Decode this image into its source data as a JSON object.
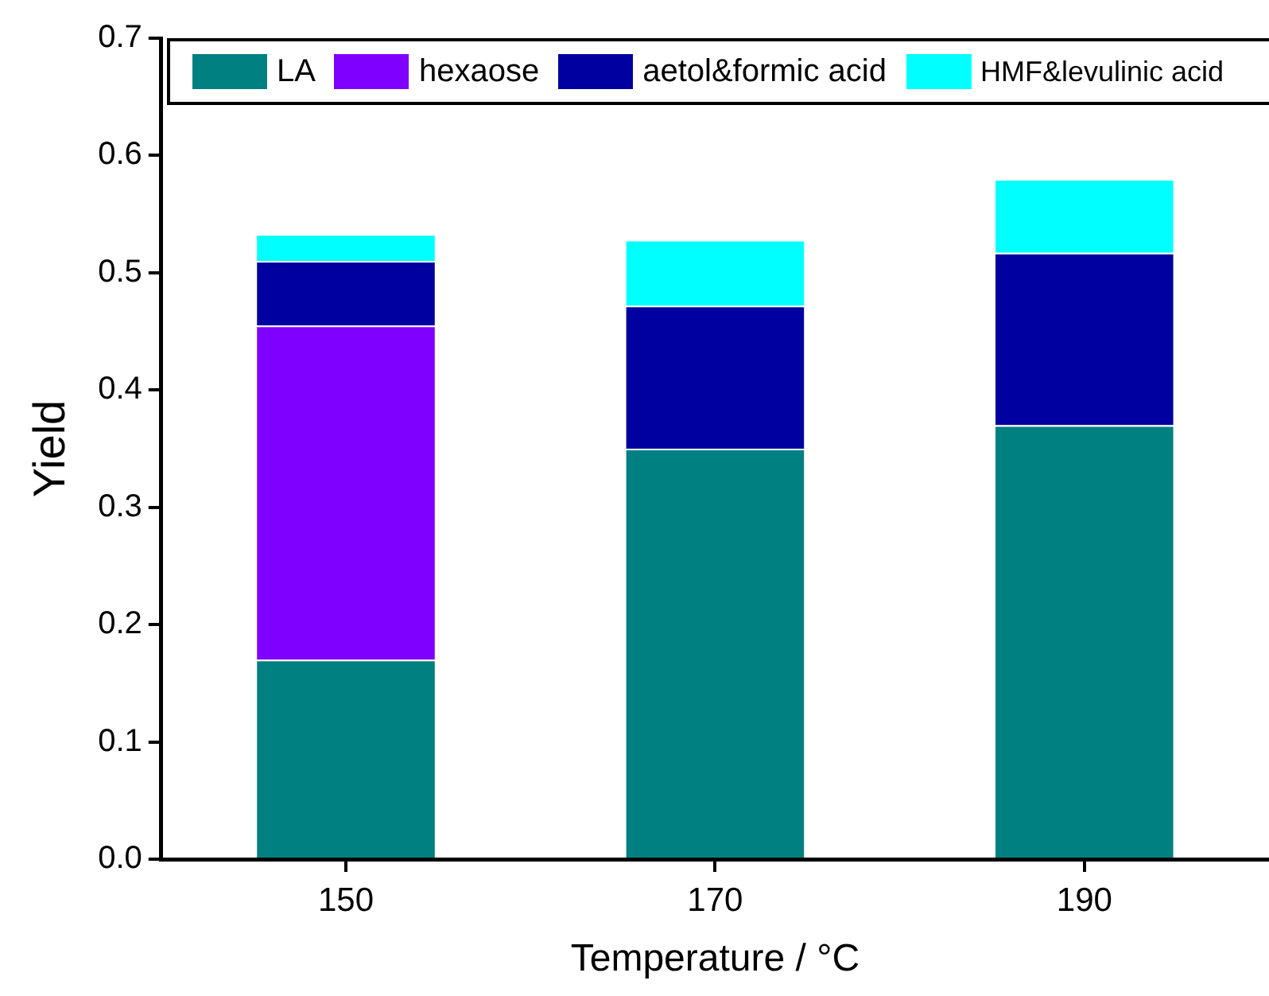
{
  "chart_data": {
    "type": "bar",
    "xlabel": "Temperature / °C",
    "ylabel": "Yield",
    "categories": [
      "150",
      "170",
      "190"
    ],
    "stacked": true,
    "ylim": [
      0,
      0.7
    ],
    "yticks": [
      {
        "value": 0,
        "label": "0.0"
      },
      0.1,
      0.2,
      0.3,
      0.4,
      0.5,
      0.6,
      0.7
    ],
    "grid": false,
    "legend": "top",
    "series": [
      {
        "name": "LA",
        "color": "#008080",
        "values": [
          0.17,
          0.35,
          0.37
        ]
      },
      {
        "name": "hexaose",
        "color": "#8000ff",
        "values": [
          0.285,
          null,
          null
        ]
      },
      {
        "name": "aetol&formic acid",
        "color": "#0000a0",
        "values": [
          0.055,
          0.122,
          0.147
        ]
      },
      {
        "name": "HMF&levulinic acid",
        "color": "#00ffff",
        "values": [
          0.023,
          0.056,
          0.063
        ]
      }
    ]
  }
}
